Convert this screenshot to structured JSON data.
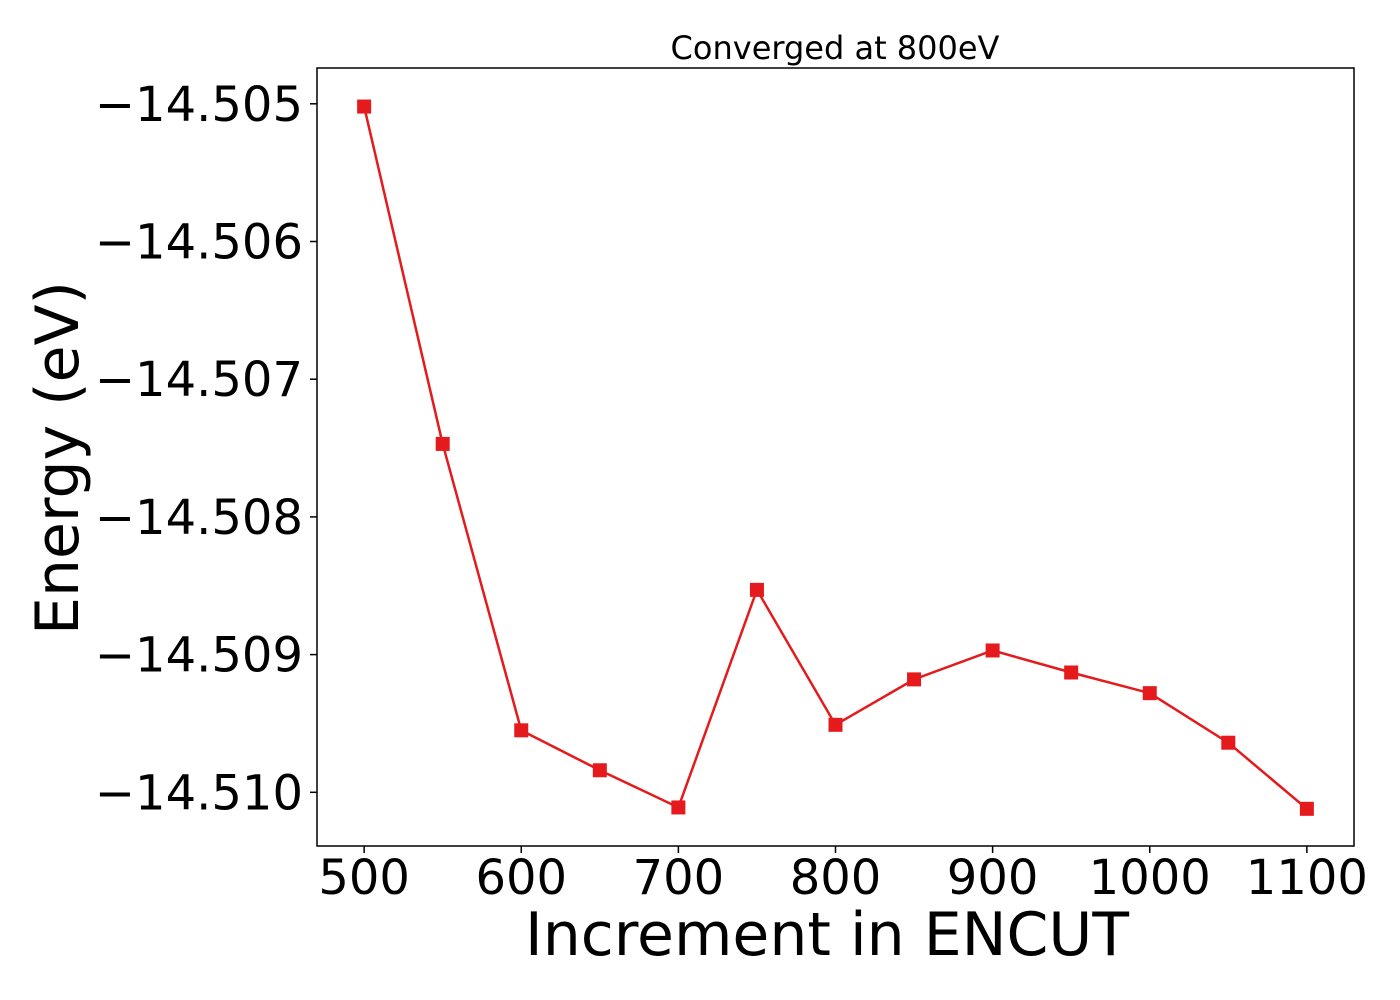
{
  "chart_data": {
    "type": "line",
    "title": "Converged at 800eV",
    "xlabel": "Increment in ENCUT",
    "ylabel": "Energy (eV)",
    "xlim": [
      470,
      1130
    ],
    "ylim": [
      -14.51039,
      -14.50474
    ],
    "xticks": [
      500,
      600,
      700,
      800,
      900,
      1000,
      1100
    ],
    "xtick_labels": [
      "500",
      "600",
      "700",
      "800",
      "900",
      "1000",
      "1100"
    ],
    "yticks": [
      -14.505,
      -14.506,
      -14.507,
      -14.508,
      -14.509,
      -14.51
    ],
    "ytick_labels": [
      "−14.505",
      "−14.506",
      "−14.507",
      "−14.508",
      "−14.509",
      "−14.510"
    ],
    "grid": false,
    "marker": "square",
    "series": [
      {
        "color": "#e41a1c",
        "x": [
          500,
          550,
          600,
          650,
          700,
          750,
          800,
          850,
          900,
          950,
          1000,
          1050,
          1100
        ],
        "y": [
          -14.50502,
          -14.50747,
          -14.50955,
          -14.50984,
          -14.51011,
          -14.50853,
          -14.50951,
          -14.50918,
          -14.50897,
          -14.50913,
          -14.50928,
          -14.50964,
          -14.51012
        ]
      }
    ]
  }
}
